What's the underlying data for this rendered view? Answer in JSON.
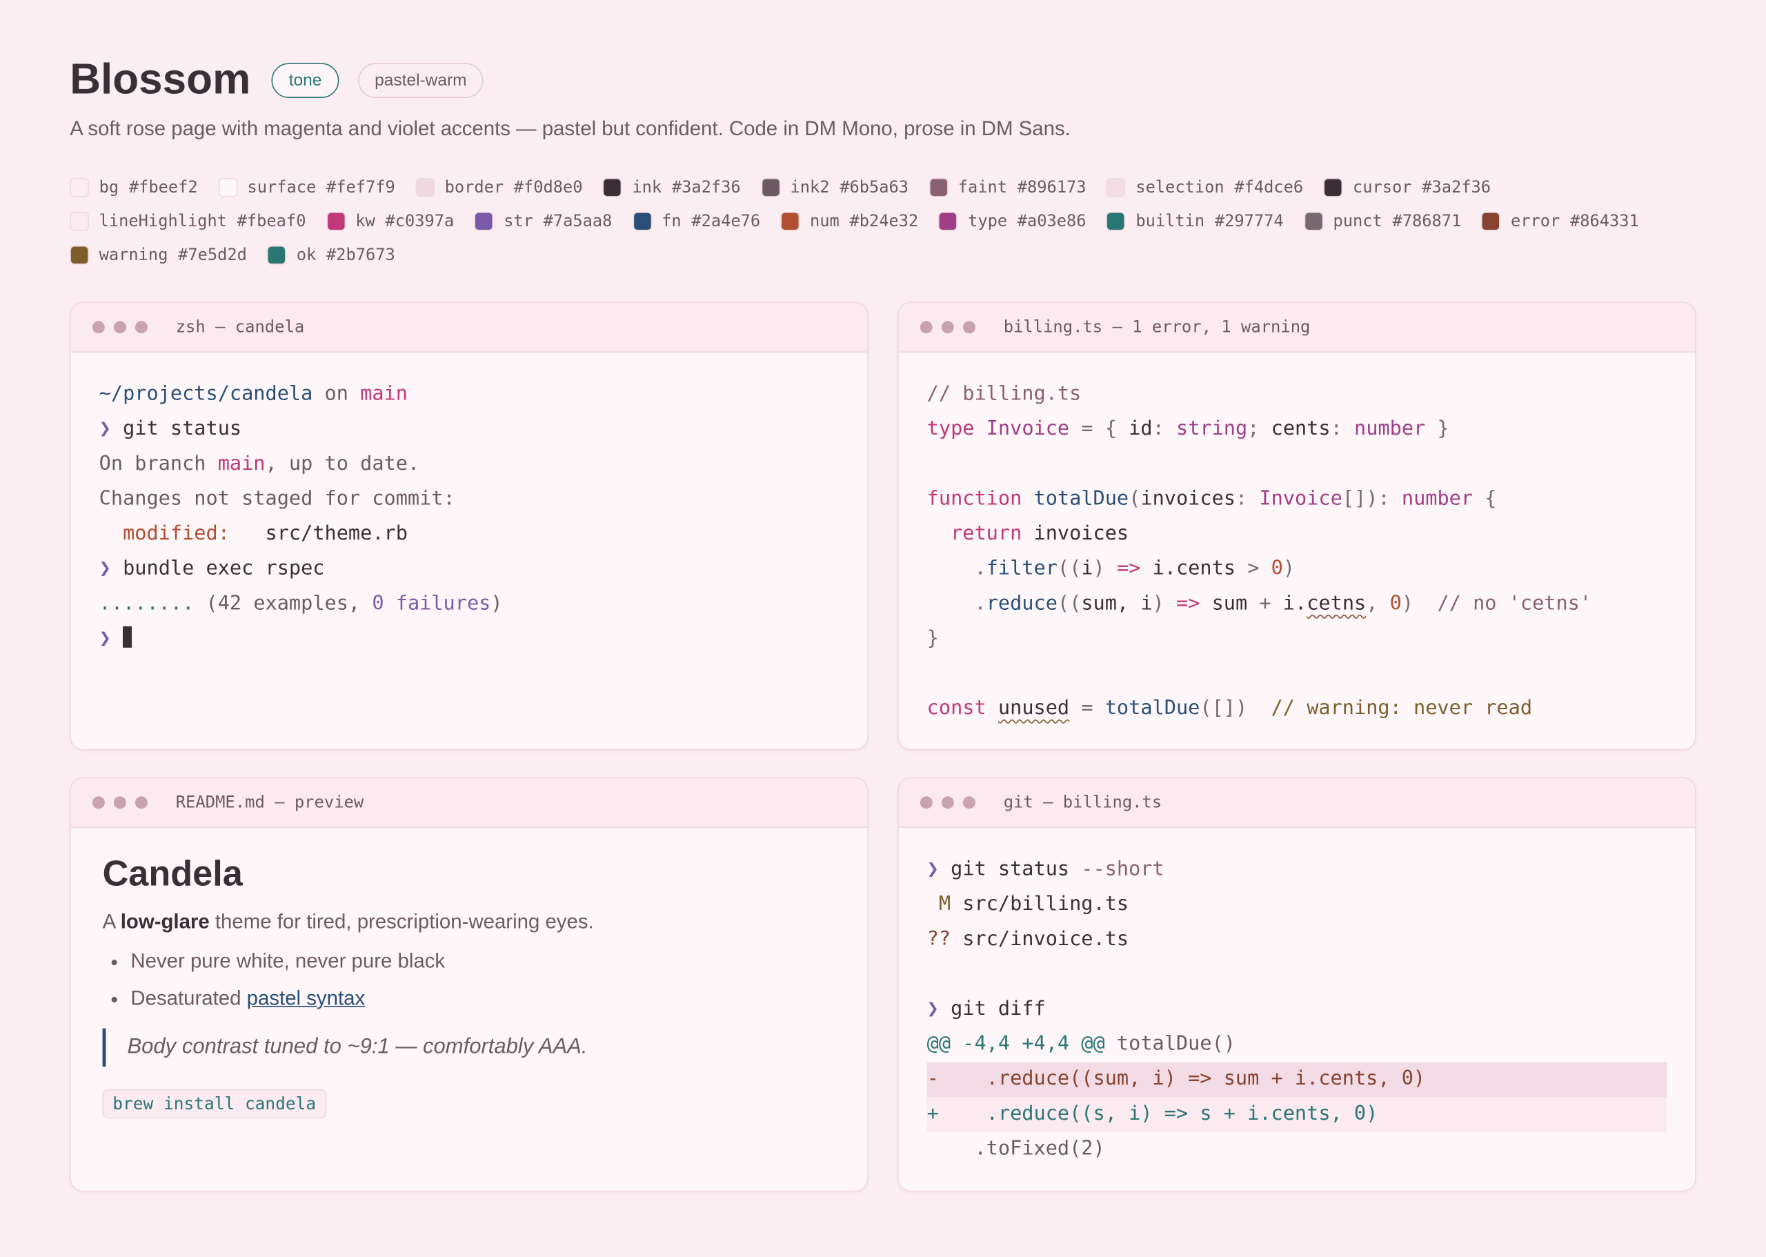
{
  "header": {
    "title": "Blossom",
    "tags": [
      "tone",
      "pastel-warm"
    ],
    "description": "A soft rose page with magenta and violet accents — pastel but confident. Code in DM Mono, prose in DM Sans."
  },
  "palette": [
    {
      "name": "bg",
      "hex": "#fbeef2"
    },
    {
      "name": "surface",
      "hex": "#fef7f9"
    },
    {
      "name": "border",
      "hex": "#f0d8e0"
    },
    {
      "name": "ink",
      "hex": "#3a2f36"
    },
    {
      "name": "ink2",
      "hex": "#6b5a63"
    },
    {
      "name": "faint",
      "hex": "#896173"
    },
    {
      "name": "selection",
      "hex": "#f4dce6"
    },
    {
      "name": "cursor",
      "hex": "#3a2f36"
    },
    {
      "name": "lineHighlight",
      "hex": "#fbeaf0"
    },
    {
      "name": "kw",
      "hex": "#c0397a"
    },
    {
      "name": "str",
      "hex": "#7a5aa8"
    },
    {
      "name": "fn",
      "hex": "#2a4e76"
    },
    {
      "name": "num",
      "hex": "#b24e32"
    },
    {
      "name": "type",
      "hex": "#a03e86"
    },
    {
      "name": "builtin",
      "hex": "#297774"
    },
    {
      "name": "punct",
      "hex": "#786871"
    },
    {
      "name": "error",
      "hex": "#864331"
    },
    {
      "name": "warning",
      "hex": "#7e5d2d"
    },
    {
      "name": "ok",
      "hex": "#2b7673"
    }
  ],
  "panels": [
    {
      "title": "zsh — candela",
      "lines": [
        [
          {
            "t": "~/projects/candela",
            "c": "fn"
          },
          {
            "t": " on ",
            "c": "ink2"
          },
          {
            "t": "main",
            "c": "kw"
          }
        ],
        [
          {
            "t": "❯ ",
            "c": "str"
          },
          {
            "t": "git status",
            "c": "ink"
          }
        ],
        [
          {
            "t": "On branch ",
            "c": "ink2"
          },
          {
            "t": "main",
            "c": "kw"
          },
          {
            "t": ", up to date.",
            "c": "ink2"
          }
        ],
        [
          {
            "t": "Changes not staged for commit:",
            "c": "ink2"
          }
        ],
        [
          {
            "t": "  modified:",
            "c": "num"
          },
          {
            "t": "   src/theme.rb",
            "c": "ink"
          }
        ],
        [
          {
            "t": "❯ ",
            "c": "str"
          },
          {
            "t": "bundle exec rspec",
            "c": "ink"
          }
        ],
        [
          {
            "t": "........",
            "c": "ok"
          },
          {
            "t": " (42 examples, ",
            "c": "ink2"
          },
          {
            "t": "0 failures",
            "c": "str"
          },
          {
            "t": ")",
            "c": "ink2"
          }
        ],
        [
          {
            "t": "❯ ",
            "c": "str"
          },
          {
            "c": "cursor"
          }
        ]
      ]
    },
    {
      "title": "billing.ts — 1 error, 1 warning",
      "lines": [
        [
          {
            "t": "// billing.ts",
            "c": "faint"
          }
        ],
        [
          {
            "t": "type",
            "c": "kw"
          },
          {
            "t": " ",
            "c": "ink"
          },
          {
            "t": "Invoice",
            "c": "type"
          },
          {
            "t": " = { ",
            "c": "punct"
          },
          {
            "t": "id",
            "c": "ink"
          },
          {
            "t": ": ",
            "c": "punct"
          },
          {
            "t": "string",
            "c": "type"
          },
          {
            "t": "; ",
            "c": "punct"
          },
          {
            "t": "cents",
            "c": "ink"
          },
          {
            "t": ": ",
            "c": "punct"
          },
          {
            "t": "number",
            "c": "type"
          },
          {
            "t": " }",
            "c": "punct"
          }
        ],
        [],
        [
          {
            "t": "function",
            "c": "kw"
          },
          {
            "t": " ",
            "c": "ink"
          },
          {
            "t": "totalDue",
            "c": "fn"
          },
          {
            "t": "(",
            "c": "punct"
          },
          {
            "t": "invoices",
            "c": "ink"
          },
          {
            "t": ": ",
            "c": "punct"
          },
          {
            "t": "Invoice",
            "c": "type"
          },
          {
            "t": "[]): ",
            "c": "punct"
          },
          {
            "t": "number",
            "c": "type"
          },
          {
            "t": " {",
            "c": "punct"
          }
        ],
        [
          {
            "t": "  return",
            "c": "kw"
          },
          {
            "t": " invoices",
            "c": "ink"
          }
        ],
        [
          {
            "t": "    .",
            "c": "punct"
          },
          {
            "t": "filter",
            "c": "fn"
          },
          {
            "t": "((",
            "c": "punct"
          },
          {
            "t": "i",
            "c": "ink"
          },
          {
            "t": ") ",
            "c": "punct"
          },
          {
            "t": "=>",
            "c": "kw"
          },
          {
            "t": " i.cents ",
            "c": "ink"
          },
          {
            "t": ">",
            "c": "punct"
          },
          {
            "t": " ",
            "c": "ink"
          },
          {
            "t": "0",
            "c": "num"
          },
          {
            "t": ")",
            "c": "punct"
          }
        ],
        [
          {
            "t": "    .",
            "c": "punct"
          },
          {
            "t": "reduce",
            "c": "fn"
          },
          {
            "t": "((",
            "c": "punct"
          },
          {
            "t": "sum, i",
            "c": "ink"
          },
          {
            "t": ") ",
            "c": "punct"
          },
          {
            "t": "=>",
            "c": "kw"
          },
          {
            "t": " sum ",
            "c": "ink"
          },
          {
            "t": "+",
            "c": "punct"
          },
          {
            "t": " i.",
            "c": "ink"
          },
          {
            "t": "cetns",
            "c": "ink",
            "u": "error"
          },
          {
            "t": ", ",
            "c": "punct"
          },
          {
            "t": "0",
            "c": "num"
          },
          {
            "t": ")",
            "c": "punct"
          },
          {
            "t": "  // no 'cetns'",
            "c": "faint"
          }
        ],
        [
          {
            "t": "}",
            "c": "punct"
          }
        ],
        [],
        [
          {
            "t": "const",
            "c": "kw"
          },
          {
            "t": " ",
            "c": "ink"
          },
          {
            "t": "unused",
            "c": "ink",
            "u": "warning"
          },
          {
            "t": " = ",
            "c": "punct"
          },
          {
            "t": "totalDue",
            "c": "fn"
          },
          {
            "t": "([])",
            "c": "punct"
          },
          {
            "t": "  // warning: never read",
            "c": "warning"
          }
        ]
      ]
    },
    {
      "title": "README.md — preview",
      "heading": "Candela",
      "intro": [
        {
          "t": "A "
        },
        {
          "t": "low-glare",
          "b": true
        },
        {
          "t": " theme for tired, prescription-wearing eyes."
        }
      ],
      "list": [
        [
          {
            "t": "Never pure white, never pure black"
          }
        ],
        [
          {
            "t": "Desaturated "
          },
          {
            "t": "pastel syntax",
            "link": true
          }
        ]
      ],
      "quote": "Body contrast tuned to ~9:1 — comfortably AAA.",
      "code": "brew install candela"
    },
    {
      "title": "git — billing.ts",
      "lines": [
        [
          {
            "t": "❯ ",
            "c": "str"
          },
          {
            "t": "git status",
            "c": "ink"
          },
          {
            "t": " --short",
            "c": "faint"
          }
        ],
        [
          {
            "t": " M",
            "c": "warning"
          },
          {
            "t": " src/billing.ts",
            "c": "ink"
          }
        ],
        [
          {
            "t": "??",
            "c": "error"
          },
          {
            "t": " src/invoice.ts",
            "c": "ink"
          }
        ],
        [],
        [
          {
            "t": "❯ ",
            "c": "str"
          },
          {
            "t": "git diff",
            "c": "ink"
          }
        ],
        [
          {
            "t": "@@ -4,4 +4,4 @@",
            "c": "ok"
          },
          {
            "t": " totalDue()",
            "c": "ink2"
          }
        ],
        {
          "bg": "selection",
          "tokens": [
            {
              "t": "-    .reduce((sum, i) => sum + i.cents, 0)",
              "c": "error"
            }
          ]
        },
        {
          "bg": "lineHighlight",
          "tokens": [
            {
              "t": "+    .reduce((s, i) => s + i.cents, 0)",
              "c": "ok"
            }
          ]
        },
        [
          {
            "t": "    .toFixed(2)",
            "c": "ink2"
          }
        ]
      ]
    }
  ]
}
